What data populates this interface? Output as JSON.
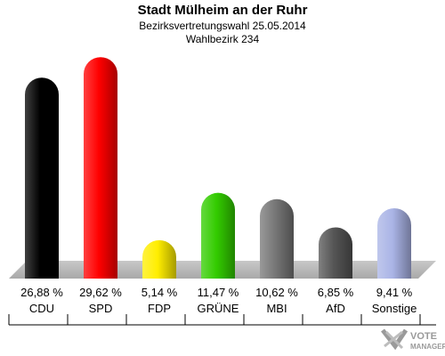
{
  "header": {
    "title": "Stadt Mülheim an der Ruhr",
    "subtitle": "Bezirksvertretungswahl 25.05.2014",
    "district": "Wahlbezirk 234"
  },
  "chart_data": {
    "type": "bar",
    "title": "Stadt Mülheim an der Ruhr",
    "subtitle": "Bezirksvertretungswahl 25.05.2014 · Wahlbezirk 234",
    "categories": [
      "CDU",
      "SPD",
      "FDP",
      "GRÜNE",
      "MBI",
      "AfD",
      "Sonstige"
    ],
    "values": [
      26.88,
      29.62,
      5.14,
      11.47,
      10.62,
      6.85,
      9.41
    ],
    "value_labels": [
      "26,88 %",
      "29,62 %",
      "5,14 %",
      "11,47 %",
      "10,62 %",
      "6,85 %",
      "9,41 %"
    ],
    "colors": [
      "#000000",
      "#ff0000",
      "#ffee00",
      "#33cc00",
      "#777777",
      "#555555",
      "#aab4e6"
    ],
    "ylim": [
      0,
      30
    ],
    "grid": false,
    "legend": "none"
  },
  "logo": {
    "line1": "VOTE",
    "line2": "MANAGER"
  }
}
